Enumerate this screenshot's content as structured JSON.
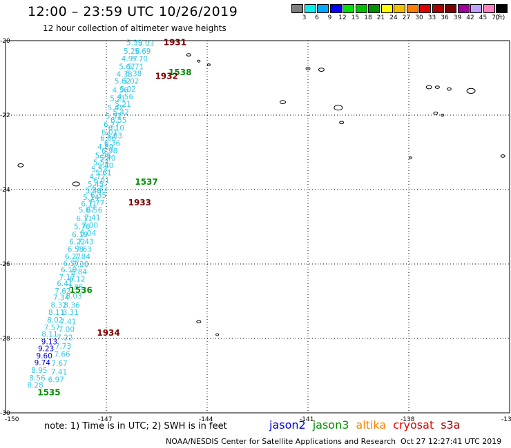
{
  "header": {
    "title": "12:00 – 23:59 UTC 10/26/2019",
    "subtitle": "12 hour collection of altimeter wave heights"
  },
  "color_scale": {
    "unit": "(ft)",
    "steps": [
      {
        "label": "3",
        "color": "#7f7f7f"
      },
      {
        "label": "6",
        "color": "#00f0f0"
      },
      {
        "label": "9",
        "color": "#00a8ff"
      },
      {
        "label": "12",
        "color": "#0000ff"
      },
      {
        "label": "15",
        "color": "#00e000"
      },
      {
        "label": "18",
        "color": "#00c000"
      },
      {
        "label": "21",
        "color": "#009000"
      },
      {
        "label": "24",
        "color": "#ffff00"
      },
      {
        "label": "27",
        "color": "#f0c000"
      },
      {
        "label": "30",
        "color": "#ff8000"
      },
      {
        "label": "33",
        "color": "#e00000"
      },
      {
        "label": "36",
        "color": "#b00000"
      },
      {
        "label": "39",
        "color": "#800000"
      },
      {
        "label": "42",
        "color": "#a000a0"
      },
      {
        "label": "45",
        "color": "#c0a0ff"
      },
      {
        "label": "70",
        "color": "#ff80c0"
      },
      {
        "label": "",
        "color": "#000000"
      }
    ]
  },
  "axes": {
    "lon_labels": [
      "-150",
      "-147",
      "-144",
      "-141",
      "-138",
      "-13"
    ],
    "lat_labels": [
      "-20",
      "-22",
      "-24",
      "-26",
      "-28",
      "-30"
    ]
  },
  "tracks": [
    {
      "name": "track-a",
      "color": "#30c8e8",
      "points": [
        [
          "5.39",
          -146.2,
          -20.05
        ],
        [
          "5.26",
          -146.28,
          -20.28
        ],
        [
          "4.97",
          -146.35,
          -20.48
        ],
        [
          "5.67",
          -146.42,
          -20.69
        ],
        [
          "4.38",
          -146.5,
          -20.9
        ],
        [
          "5.62",
          -146.55,
          -21.08
        ],
        [
          "4.56",
          -146.62,
          -21.32
        ],
        [
          "5.21",
          -146.69,
          -21.55
        ],
        [
          "5.42",
          -146.76,
          -21.8
        ],
        [
          "5.52",
          -146.82,
          -22.02
        ],
        [
          "6.27",
          -146.88,
          -22.25
        ],
        [
          "6.01",
          -146.94,
          -22.45
        ],
        [
          "6.06",
          -146.98,
          -22.62
        ],
        [
          "4.89",
          -147.06,
          -22.85
        ],
        [
          "5.96",
          -147.13,
          -23.08
        ],
        [
          "5.54",
          -147.19,
          -23.27
        ],
        [
          "5.53",
          -147.24,
          -23.45
        ],
        [
          "4.77",
          -147.3,
          -23.65
        ],
        [
          "5.45",
          -147.35,
          -23.85
        ],
        [
          "5.48",
          -147.42,
          -24.03
        ],
        [
          "5.14",
          -147.49,
          -24.2
        ],
        [
          "6.11",
          -147.55,
          -24.38
        ],
        [
          "5.07",
          -147.62,
          -24.55
        ],
        [
          "6.11",
          -147.69,
          -24.78
        ],
        [
          "5.76",
          -147.76,
          -24.99
        ],
        [
          "6.19",
          -147.82,
          -25.2
        ],
        [
          "6.22",
          -147.9,
          -25.4
        ],
        [
          "6.58",
          -147.95,
          -25.6
        ],
        [
          "6.27",
          -148.03,
          -25.8
        ],
        [
          "6.57",
          -148.08,
          -25.98
        ],
        [
          "6.19",
          -148.15,
          -26.15
        ],
        [
          "7.17",
          -148.2,
          -26.35
        ],
        [
          "6.41",
          -148.27,
          -26.52
        ],
        [
          "7.62",
          -148.33,
          -26.72
        ],
        [
          "7.34",
          -148.38,
          -26.9
        ],
        [
          "8.32",
          -148.45,
          -27.1
        ],
        [
          "8.11",
          -148.52,
          -27.3
        ],
        [
          "8.02",
          -148.56,
          -27.5
        ],
        [
          "7.57",
          -148.65,
          -27.7
        ],
        [
          "8.11",
          -148.72,
          -27.88
        ]
      ]
    },
    {
      "name": "track-a-blue",
      "color": "#0000e0",
      "points": [
        [
          "9.13",
          -148.73,
          -28.08
        ],
        [
          "9.23",
          -148.83,
          -28.27
        ],
        [
          "9.60",
          -148.88,
          -28.46
        ],
        [
          "9.74",
          -148.94,
          -28.65
        ]
      ]
    },
    {
      "name": "track-a-tail",
      "color": "#30c8e8",
      "points": [
        [
          "8.95",
          -149.03,
          -28.85
        ],
        [
          "8.56",
          -149.09,
          -29.06
        ],
        [
          "8.28",
          -149.15,
          -29.25
        ]
      ]
    },
    {
      "name": "track-b",
      "color": "#30c8e8",
      "points": [
        [
          "5.03",
          -145.85,
          -20.07
        ],
        [
          "5.69",
          -145.95,
          -20.28
        ],
        [
          "5.70",
          -146.04,
          -20.48
        ],
        [
          "5.71",
          -146.16,
          -20.69
        ],
        [
          "5.38",
          -146.22,
          -20.88
        ],
        [
          "5.02",
          -146.3,
          -21.08
        ],
        [
          "5.02",
          -146.39,
          -21.3
        ],
        [
          "4.56",
          -146.47,
          -21.5
        ],
        [
          "5.21",
          -146.54,
          -21.7
        ],
        [
          "5.42",
          -146.6,
          -21.92
        ],
        [
          "6.55",
          -146.67,
          -22.13
        ],
        [
          "6.10",
          -146.74,
          -22.34
        ],
        [
          "5.63",
          -146.8,
          -22.55
        ],
        [
          "6.36",
          -146.86,
          -22.75
        ],
        [
          "6.98",
          -146.94,
          -22.95
        ],
        [
          "5.40",
          -147.0,
          -23.15
        ],
        [
          "5.40",
          -147.06,
          -23.35
        ],
        [
          "5.61",
          -147.12,
          -23.55
        ],
        [
          "6.01",
          -147.18,
          -23.75
        ],
        [
          "6.21",
          -147.22,
          -23.95
        ],
        [
          "6.35",
          -147.27,
          -24.15
        ],
        [
          "7.77",
          -147.33,
          -24.35
        ],
        [
          "6.56",
          -147.39,
          -24.55
        ],
        [
          "7.41",
          -147.45,
          -24.75
        ],
        [
          "7.00",
          -147.52,
          -24.95
        ],
        [
          "6.04",
          -147.58,
          -25.17
        ],
        [
          "7.43",
          -147.65,
          -25.4
        ],
        [
          "7.63",
          -147.71,
          -25.6
        ],
        [
          "7.84",
          -147.75,
          -25.8
        ],
        [
          "7.20",
          -147.8,
          -26.0
        ],
        [
          "6.84",
          -147.85,
          -26.2
        ],
        [
          "6.12",
          -147.9,
          -26.4
        ],
        [
          "7.85",
          -147.96,
          -26.62
        ],
        [
          "8.03",
          -148.0,
          -26.85
        ],
        [
          "8.36",
          -148.06,
          -27.1
        ],
        [
          "8.31",
          -148.1,
          -27.3
        ],
        [
          "7.41",
          -148.17,
          -27.55
        ],
        [
          "7.00",
          -148.22,
          -27.75
        ],
        [
          "7.22",
          -148.27,
          -27.97
        ],
        [
          "7.73",
          -148.32,
          -28.2
        ],
        [
          "7.66",
          -148.35,
          -28.42
        ],
        [
          "7.67",
          -148.43,
          -28.67
        ],
        [
          "7.41",
          -148.44,
          -28.9
        ],
        [
          "6.97",
          -148.53,
          -29.1
        ]
      ]
    }
  ],
  "pass_labels": [
    {
      "text": "1931",
      "color": "#800000",
      "lon": -145.3,
      "lat": -20.05
    },
    {
      "text": "1538",
      "color": "#009000",
      "lon": -145.15,
      "lat": -20.85
    },
    {
      "text": "1932",
      "color": "#800000",
      "lon": -145.55,
      "lat": -20.95
    },
    {
      "text": "1537",
      "color": "#009000",
      "lon": -146.15,
      "lat": -23.8
    },
    {
      "text": "1933",
      "color": "#800000",
      "lon": -146.35,
      "lat": -24.35
    },
    {
      "text": "1536",
      "color": "#009000",
      "lon": -148.1,
      "lat": -26.7
    },
    {
      "text": "1934",
      "color": "#800000",
      "lon": -147.28,
      "lat": -27.85
    },
    {
      "text": "1535",
      "color": "#009000",
      "lon": -149.05,
      "lat": -29.45
    }
  ],
  "islands": [
    {
      "lon": -144.55,
      "lat": -20.38,
      "s": 3
    },
    {
      "lon": -144.25,
      "lat": -20.55,
      "s": 2
    },
    {
      "lon": -143.95,
      "lat": -20.65,
      "s": 2
    },
    {
      "lon": -141.0,
      "lat": -20.75,
      "s": 3
    },
    {
      "lon": -140.6,
      "lat": -20.78,
      "s": 4
    },
    {
      "lon": -141.75,
      "lat": -21.65,
      "s": 4
    },
    {
      "lon": -140.1,
      "lat": -21.8,
      "s": 6
    },
    {
      "lon": -140.0,
      "lat": -22.2,
      "s": 3
    },
    {
      "lon": -137.4,
      "lat": -21.25,
      "s": 4
    },
    {
      "lon": -137.15,
      "lat": -21.25,
      "s": 3
    },
    {
      "lon": -136.8,
      "lat": -21.3,
      "s": 3
    },
    {
      "lon": -136.15,
      "lat": -21.35,
      "s": 6
    },
    {
      "lon": -137.2,
      "lat": -21.95,
      "s": 3
    },
    {
      "lon": -137.0,
      "lat": -22.0,
      "s": 2
    },
    {
      "lon": -137.95,
      "lat": -23.15,
      "s": 2
    },
    {
      "lon": -135.2,
      "lat": -23.1,
      "s": 3
    },
    {
      "lon": -149.55,
      "lat": -23.35,
      "s": 4
    },
    {
      "lon": -147.9,
      "lat": -23.85,
      "s": 5
    },
    {
      "lon": -144.25,
      "lat": -27.55,
      "s": 3
    },
    {
      "lon": -143.7,
      "lat": -27.9,
      "s": 2
    }
  ],
  "note": "note: 1) Time is in UTC; 2) SWH is in feet",
  "satellite_legend": [
    {
      "name": "jason2",
      "color": "#0000e0"
    },
    {
      "name": "jason3",
      "color": "#009000"
    },
    {
      "name": "altika",
      "color": "#ff8000"
    },
    {
      "name": "cryosat",
      "color": "#e00000"
    },
    {
      "name": "s3a",
      "color": "#b00000"
    }
  ],
  "footer": "NOAA/NESDIS Center for Satellite Applications and Research",
  "timestamp": "Oct 27 12:27:41 UTC 2019"
}
